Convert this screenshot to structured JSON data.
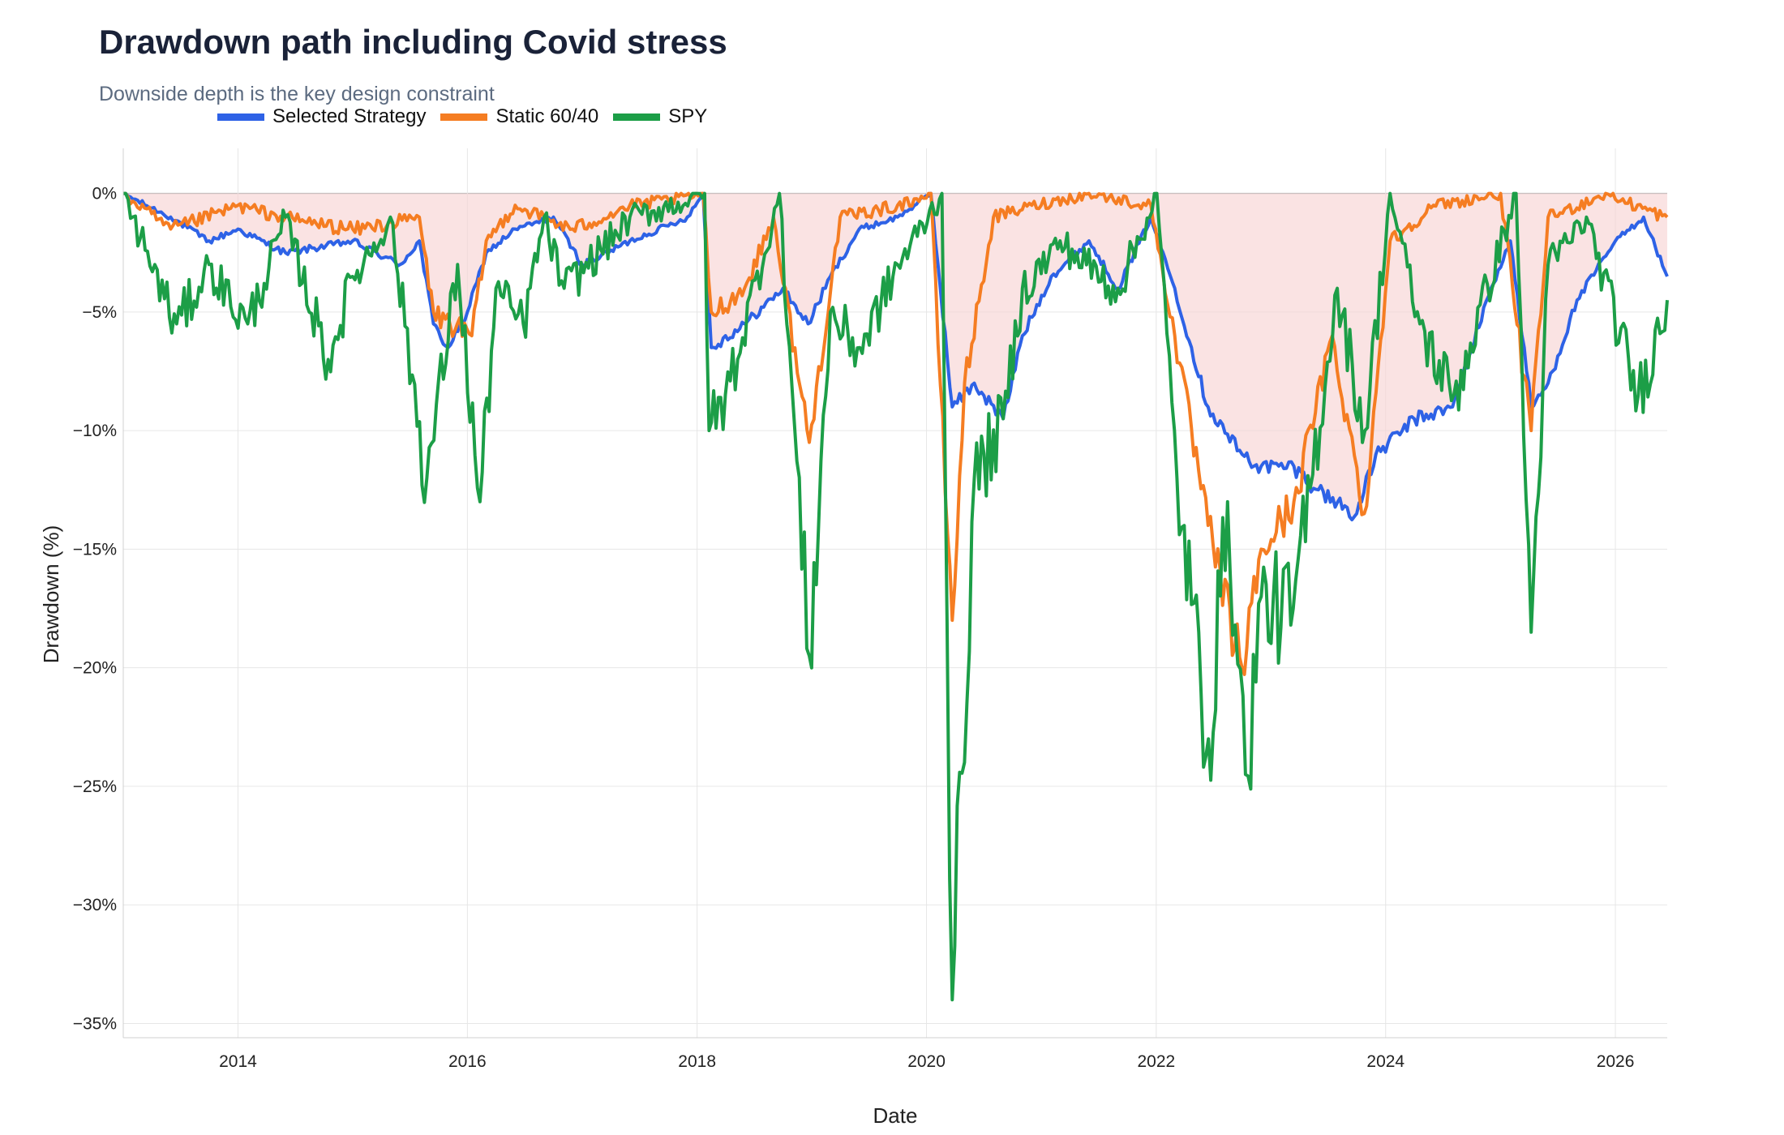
{
  "chart_data": {
    "type": "line",
    "title": "Drawdown path including Covid stress",
    "subtitle": "Downside depth is the key design constraint",
    "xlabel": "Date",
    "ylabel": "Drawdown (%)",
    "xlim": [
      "2013-01-01",
      "2026-06-15"
    ],
    "ylim": [
      -35.6,
      1.9
    ],
    "x_ticks": [
      "2014",
      "2016",
      "2018",
      "2020",
      "2022",
      "2024",
      "2026"
    ],
    "y_ticks": [
      "0%",
      "−5%",
      "−10%",
      "−15%",
      "−20%",
      "−25%",
      "−30%",
      "−35%"
    ],
    "y_tick_values": [
      0,
      -5,
      -10,
      -15,
      -20,
      -25,
      -30,
      -35
    ],
    "grid": true,
    "legend_position": "top-left",
    "shaded_band": "Selected Strategy drawdown area (light red)",
    "series": [
      {
        "name": "Selected Strategy",
        "color": "#2e62e6",
        "points": [
          [
            "2013-01-01",
            0
          ],
          [
            "2013-06-01",
            -1.0
          ],
          [
            "2013-10-01",
            -2.0
          ],
          [
            "2014-01-01",
            -1.5
          ],
          [
            "2014-06-01",
            -2.5
          ],
          [
            "2015-01-01",
            -2.0
          ],
          [
            "2015-06-01",
            -3.0
          ],
          [
            "2015-08-01",
            -2.0
          ],
          [
            "2015-09-15",
            -5.5
          ],
          [
            "2015-11-01",
            -6.5
          ],
          [
            "2016-01-01",
            -5.0
          ],
          [
            "2016-03-01",
            -2.5
          ],
          [
            "2016-06-01",
            -1.5
          ],
          [
            "2016-10-01",
            -1.0
          ],
          [
            "2017-01-01",
            -3.0
          ],
          [
            "2017-06-01",
            -2.0
          ],
          [
            "2017-12-01",
            -1.0
          ],
          [
            "2018-01-20",
            0
          ],
          [
            "2018-02-15",
            -6.5
          ],
          [
            "2018-06-01",
            -5.5
          ],
          [
            "2018-10-01",
            -4.0
          ],
          [
            "2018-12-20",
            -5.5
          ],
          [
            "2019-03-01",
            -3.5
          ],
          [
            "2019-06-01",
            -1.5
          ],
          [
            "2019-10-01",
            -1.0
          ],
          [
            "2020-01-15",
            0
          ],
          [
            "2020-03-23",
            -9.0
          ],
          [
            "2020-06-01",
            -8.0
          ],
          [
            "2020-09-01",
            -9.5
          ],
          [
            "2020-11-01",
            -6.0
          ],
          [
            "2021-02-01",
            -3.5
          ],
          [
            "2021-06-01",
            -2.0
          ],
          [
            "2021-09-01",
            -4.0
          ],
          [
            "2021-12-15",
            -1.0
          ],
          [
            "2022-03-01",
            -4.0
          ],
          [
            "2022-06-15",
            -9.0
          ],
          [
            "2022-10-01",
            -11.0
          ],
          [
            "2022-12-01",
            -11.5
          ],
          [
            "2023-03-15",
            -11.5
          ],
          [
            "2023-06-01",
            -12.5
          ],
          [
            "2023-10-01",
            -13.5
          ],
          [
            "2023-12-01",
            -11.0
          ],
          [
            "2024-04-01",
            -9.5
          ],
          [
            "2024-08-01",
            -9.0
          ],
          [
            "2024-12-01",
            -4.0
          ],
          [
            "2025-02-01",
            -2.0
          ],
          [
            "2025-04-08",
            -9.0
          ],
          [
            "2025-06-01",
            -8.0
          ],
          [
            "2025-09-01",
            -4.5
          ],
          [
            "2026-01-01",
            -2.0
          ],
          [
            "2026-04-01",
            -1.0
          ],
          [
            "2026-06-15",
            -3.5
          ]
        ]
      },
      {
        "name": "Static 60/40",
        "color": "#f57d22",
        "points": [
          [
            "2013-01-01",
            0
          ],
          [
            "2013-06-01",
            -1.5
          ],
          [
            "2014-01-01",
            -0.5
          ],
          [
            "2014-06-01",
            -1.0
          ],
          [
            "2015-01-01",
            -1.5
          ],
          [
            "2015-08-01",
            -1.0
          ],
          [
            "2015-09-15",
            -5.0
          ],
          [
            "2016-01-15",
            -6.0
          ],
          [
            "2016-03-01",
            -2.0
          ],
          [
            "2016-06-01",
            -0.5
          ],
          [
            "2016-12-01",
            -1.5
          ],
          [
            "2017-06-01",
            -0.5
          ],
          [
            "2018-01-20",
            0
          ],
          [
            "2018-02-15",
            -5.0
          ],
          [
            "2018-06-01",
            -4.0
          ],
          [
            "2018-09-01",
            -1.0
          ],
          [
            "2018-12-24",
            -10.5
          ],
          [
            "2019-04-01",
            -1.0
          ],
          [
            "2019-10-01",
            -0.5
          ],
          [
            "2020-01-15",
            0
          ],
          [
            "2020-03-23",
            -18.0
          ],
          [
            "2020-05-01",
            -8.0
          ],
          [
            "2020-08-01",
            -1.0
          ],
          [
            "2020-12-01",
            -0.5
          ],
          [
            "2021-06-01",
            0
          ],
          [
            "2021-12-15",
            -0.5
          ],
          [
            "2022-03-01",
            -6.0
          ],
          [
            "2022-06-15",
            -14.0
          ],
          [
            "2022-10-01",
            -20.0
          ],
          [
            "2022-12-01",
            -15.0
          ],
          [
            "2023-03-15",
            -13.0
          ],
          [
            "2023-07-15",
            -6.0
          ],
          [
            "2023-10-25",
            -13.5
          ],
          [
            "2024-01-15",
            -2.0
          ],
          [
            "2024-06-01",
            -0.5
          ],
          [
            "2025-01-01",
            0
          ],
          [
            "2025-04-08",
            -10.0
          ],
          [
            "2025-06-01",
            -1.0
          ],
          [
            "2025-12-01",
            0
          ],
          [
            "2026-06-15",
            -1.0
          ]
        ]
      },
      {
        "name": "SPY",
        "color": "#1c9e47",
        "points": [
          [
            "2013-01-01",
            0
          ],
          [
            "2013-06-20",
            -5.5
          ],
          [
            "2013-10-01",
            -3.0
          ],
          [
            "2014-02-01",
            -5.5
          ],
          [
            "2014-06-01",
            -1.0
          ],
          [
            "2014-10-15",
            -7.0
          ],
          [
            "2015-01-01",
            -3.5
          ],
          [
            "2015-05-01",
            -1.0
          ],
          [
            "2015-08-25",
            -12.0
          ],
          [
            "2015-12-01",
            -3.0
          ],
          [
            "2016-02-10",
            -13.0
          ],
          [
            "2016-04-01",
            -4.0
          ],
          [
            "2016-06-27",
            -5.5
          ],
          [
            "2016-09-01",
            -1.0
          ],
          [
            "2016-11-04",
            -4.0
          ],
          [
            "2017-06-01",
            -1.0
          ],
          [
            "2018-01-25",
            0
          ],
          [
            "2018-02-08",
            -10.0
          ],
          [
            "2018-04-01",
            -8.5
          ],
          [
            "2018-09-20",
            0
          ],
          [
            "2018-12-24",
            -19.5
          ],
          [
            "2019-03-01",
            -5.0
          ],
          [
            "2019-06-03",
            -6.5
          ],
          [
            "2019-10-01",
            -3.0
          ],
          [
            "2020-02-19",
            0
          ],
          [
            "2020-03-23",
            -34.0
          ],
          [
            "2020-06-01",
            -12.0
          ],
          [
            "2020-09-01",
            -9.5
          ],
          [
            "2020-11-01",
            -4.0
          ],
          [
            "2021-03-01",
            -2.0
          ],
          [
            "2021-09-01",
            -4.0
          ],
          [
            "2022-01-03",
            0
          ],
          [
            "2022-03-08",
            -12.0
          ],
          [
            "2022-06-16",
            -23.0
          ],
          [
            "2022-08-16",
            -13.0
          ],
          [
            "2022-10-12",
            -24.5
          ],
          [
            "2022-12-01",
            -17.0
          ],
          [
            "2023-03-13",
            -17.5
          ],
          [
            "2023-07-31",
            -4.0
          ],
          [
            "2023-10-27",
            -10.0
          ],
          [
            "2024-01-15",
            0
          ],
          [
            "2024-04-19",
            -5.5
          ],
          [
            "2024-08-05",
            -8.5
          ],
          [
            "2025-02-19",
            0
          ],
          [
            "2025-04-08",
            -18.5
          ],
          [
            "2025-06-01",
            -3.0
          ],
          [
            "2025-10-01",
            -1.0
          ],
          [
            "2026-03-15",
            -8.5
          ],
          [
            "2026-06-15",
            -4.5
          ]
        ]
      }
    ]
  }
}
